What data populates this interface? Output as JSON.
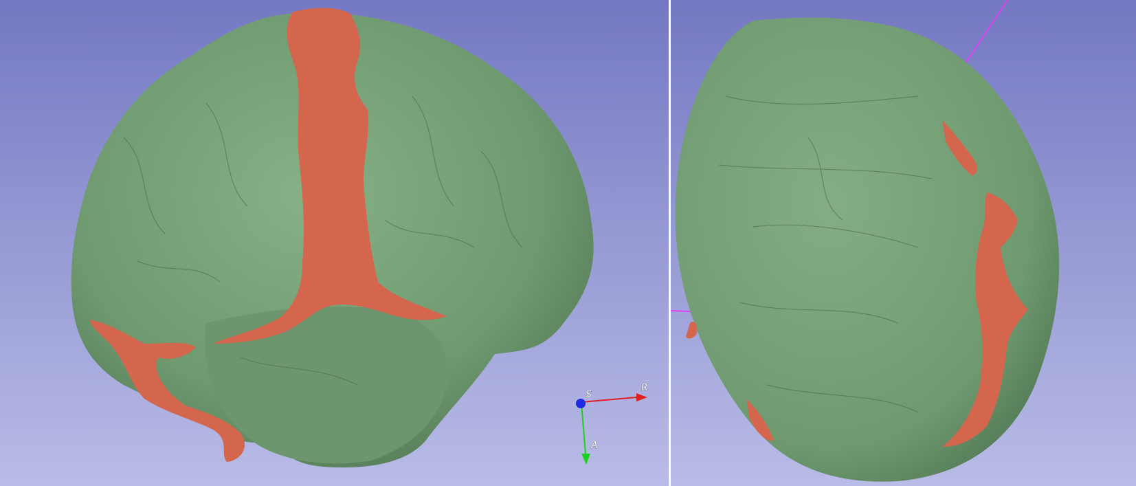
{
  "views": {
    "left": {
      "orientation_marker": {
        "axes": [
          {
            "label": "S",
            "color": "#1f2be0"
          },
          {
            "label": "R",
            "color": "#e01f1f"
          },
          {
            "label": "A",
            "color": "#1fd01f"
          }
        ]
      }
    },
    "right": {}
  },
  "colors": {
    "background_top": "#7478c2",
    "background_bottom": "#b9bce6",
    "surface_green": "#6f9a70",
    "surface_red": "#d4664e",
    "line_magenta": "#e040f0"
  },
  "icons": [
    "orientation-marker-icon"
  ]
}
